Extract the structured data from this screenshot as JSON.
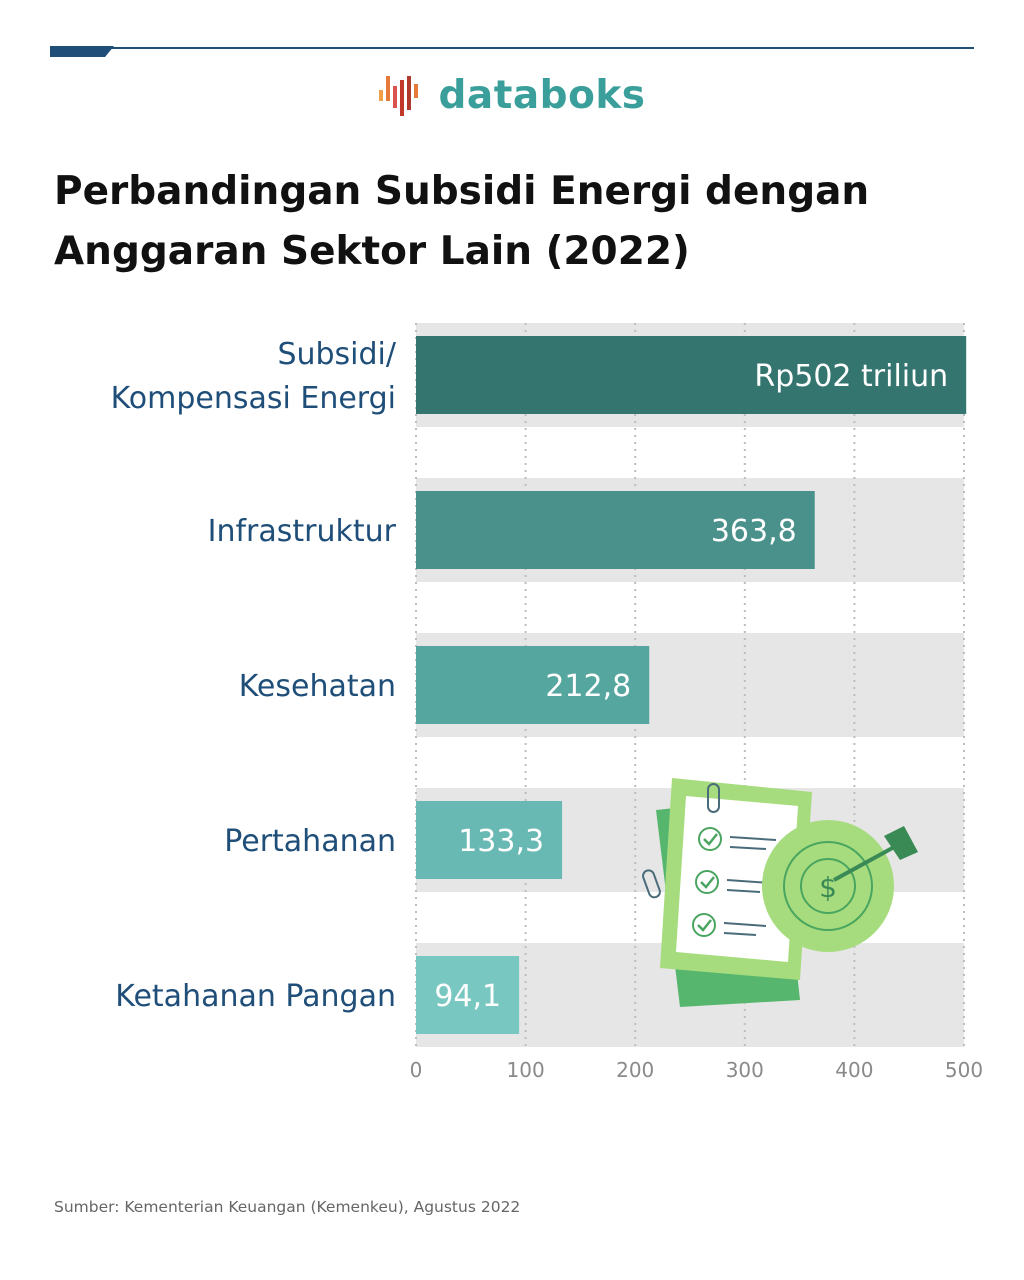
{
  "brand": {
    "name": "databoks",
    "logo_color": "#3a9f9a"
  },
  "title": "Perbandingan Subsidi Energi dengan Anggaran Sektor Lain (2022)",
  "source": "Sumber: Kementerian Keuangan (Kemenkeu), Agustus 2022",
  "illustration": {
    "icon": "checklist-target-dollar-icon"
  },
  "chart_data": {
    "type": "bar",
    "orientation": "horizontal",
    "categories": [
      [
        "Subsidi/",
        "Kompensasi Energi"
      ],
      [
        "Infrastruktur"
      ],
      [
        "Kesehatan"
      ],
      [
        "Pertahanan"
      ],
      [
        "Ketahanan Pangan"
      ]
    ],
    "values": [
      502,
      363.8,
      212.8,
      133.3,
      94.1
    ],
    "value_labels": [
      "Rp502 triliun",
      "363,8",
      "212,8",
      "133,3",
      "94,1"
    ],
    "bar_colors": [
      "#357570",
      "#4a918c",
      "#56a6a0",
      "#68b9b3",
      "#79c7c1"
    ],
    "xlim": [
      0,
      500
    ],
    "xticks": [
      0,
      100,
      200,
      300,
      400,
      500
    ],
    "xtick_labels": [
      "0",
      "100",
      "200",
      "300",
      "400",
      "500"
    ],
    "grid": "vertical dotted",
    "label_color": "#1f4e79"
  }
}
